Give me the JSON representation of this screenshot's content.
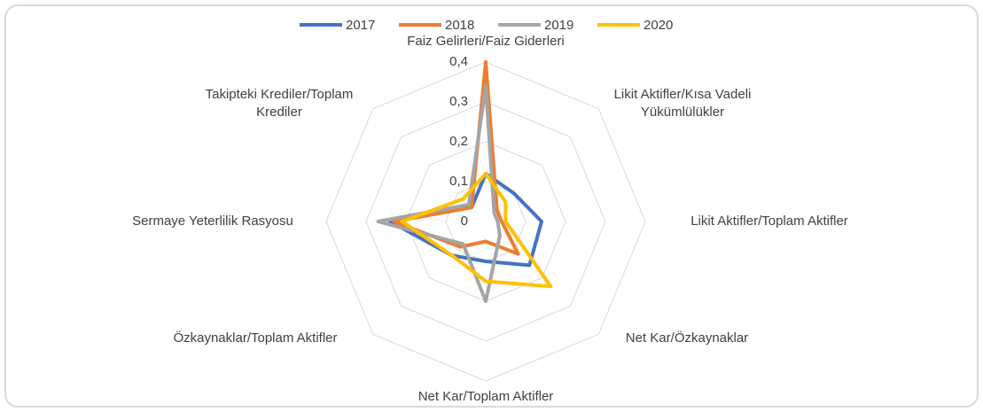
{
  "chart_data": {
    "type": "radar",
    "categories": [
      "Faiz Gelirleri/Faiz Giderleri",
      "Likit Aktifler/Kısa Vadeli Yükümlülükler",
      "Likit Aktifler/Toplam Aktifler",
      "Net Kar/Özkaynaklar",
      "Net Kar/Toplam Aktifler",
      "Özkaynaklar/Toplam Aktifler",
      "Sermaye Yeterlilik Rasyosu",
      "Takipteki Krediler/Toplam Krediler"
    ],
    "series": [
      {
        "name": "2017",
        "color": "#4472c4",
        "values": [
          0.12,
          0.1,
          0.14,
          0.155,
          0.1,
          0.12,
          0.24,
          0.05
        ]
      },
      {
        "name": "2018",
        "color": "#ed7d31",
        "values": [
          0.4,
          0.04,
          0.04,
          0.115,
          0.05,
          0.09,
          0.23,
          0.05
        ]
      },
      {
        "name": "2019",
        "color": "#a5a5a5",
        "values": [
          0.34,
          0.03,
          0.03,
          0.05,
          0.2,
          0.08,
          0.27,
          0.06
        ]
      },
      {
        "name": "2020",
        "color": "#ffc000",
        "values": [
          0.12,
          0.07,
          0.05,
          0.23,
          0.15,
          0.12,
          0.21,
          0.08
        ]
      }
    ],
    "ylim": [
      0,
      0.4
    ],
    "yticks": [
      0,
      {
        "value": 0.1,
        "label": "0,1"
      },
      {
        "value": 0.2,
        "label": "0,2"
      },
      {
        "value": 0.3,
        "label": "0,3"
      },
      {
        "value": 0.4,
        "label": "0,4"
      }
    ],
    "grid": true,
    "legend": "top"
  }
}
